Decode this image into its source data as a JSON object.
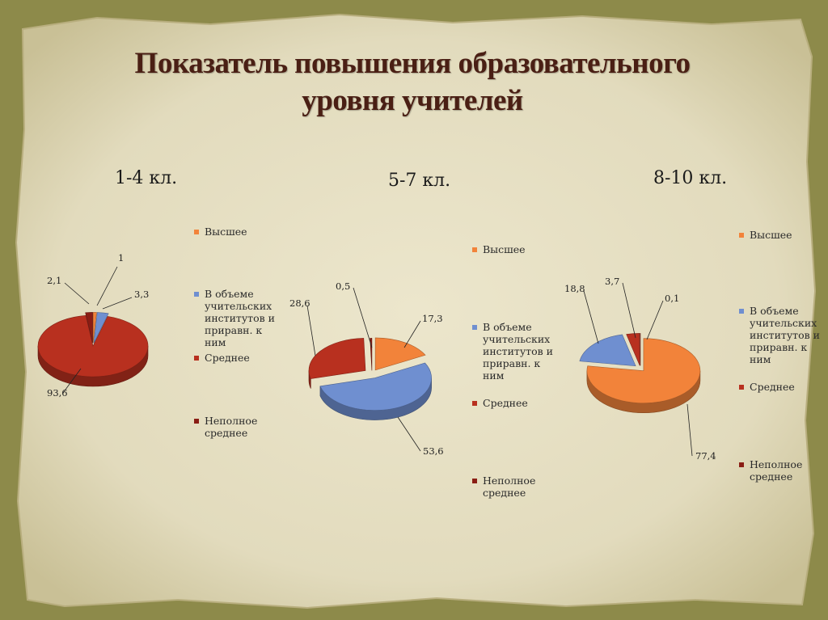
{
  "slide": {
    "title_line1": "Показатель повышения образовательного",
    "title_line2": "уровня учителей"
  },
  "colors": {
    "Высшее": "#f2833a",
    "В объеме учительских институтов и приравн. к ним": "#6f8fd0",
    "Среднее": "#b8301f",
    "Неполное среднее": "#8a1d14",
    "background": "#8d8a4a",
    "paper": "#e6e0c4"
  },
  "legend_entries": [
    [
      "Высшее"
    ],
    [
      "В объеме",
      "учительских",
      "институтов и",
      "приравн. к ним"
    ],
    [
      "Среднее"
    ],
    [
      "Неполное",
      "среднее"
    ]
  ],
  "chart_data": [
    {
      "type": "pie",
      "title": "1-4 кл.",
      "categories": [
        "Высшее",
        "В объеме учительских институтов и приравн. к ним",
        "Среднее",
        "Неполное среднее"
      ],
      "values": [
        1,
        3.3,
        93.6,
        2.1
      ],
      "value_labels": [
        "1",
        "3,3",
        "93,6",
        "2,1"
      ],
      "legend": "right"
    },
    {
      "type": "pie",
      "title": "5-7 кл.",
      "categories": [
        "Высшее",
        "В объеме учительских институтов и приравн. к ним",
        "Среднее",
        "Неполное среднее"
      ],
      "values": [
        17.3,
        53.6,
        28.6,
        0.5
      ],
      "value_labels": [
        "17,3",
        "53,6",
        "28,6",
        "0,5"
      ],
      "legend_lines": [
        [
          "Высшее"
        ],
        [
          "В объеме",
          "учительских",
          "институтов и",
          "приравн. к",
          "ним"
        ],
        [
          "Среднее"
        ],
        [
          "Неполное",
          "среднее"
        ]
      ],
      "legend": "right"
    },
    {
      "type": "pie",
      "title": "8-10 кл.",
      "categories": [
        "Высшее",
        "В объеме учительских институтов и приравн. к ним",
        "Среднее",
        "Неполное среднее"
      ],
      "values": [
        77.4,
        18.8,
        3.7,
        0.1
      ],
      "value_labels": [
        "77,4",
        "18,8",
        "3,7",
        "0,1"
      ],
      "legend_lines": [
        [
          "Высшее"
        ],
        [
          "В объеме",
          "учительских",
          "институтов и",
          "приравн. к",
          "ним"
        ],
        [
          "Среднее"
        ],
        [
          "Неполное",
          "среднее"
        ]
      ],
      "legend": "right"
    }
  ]
}
